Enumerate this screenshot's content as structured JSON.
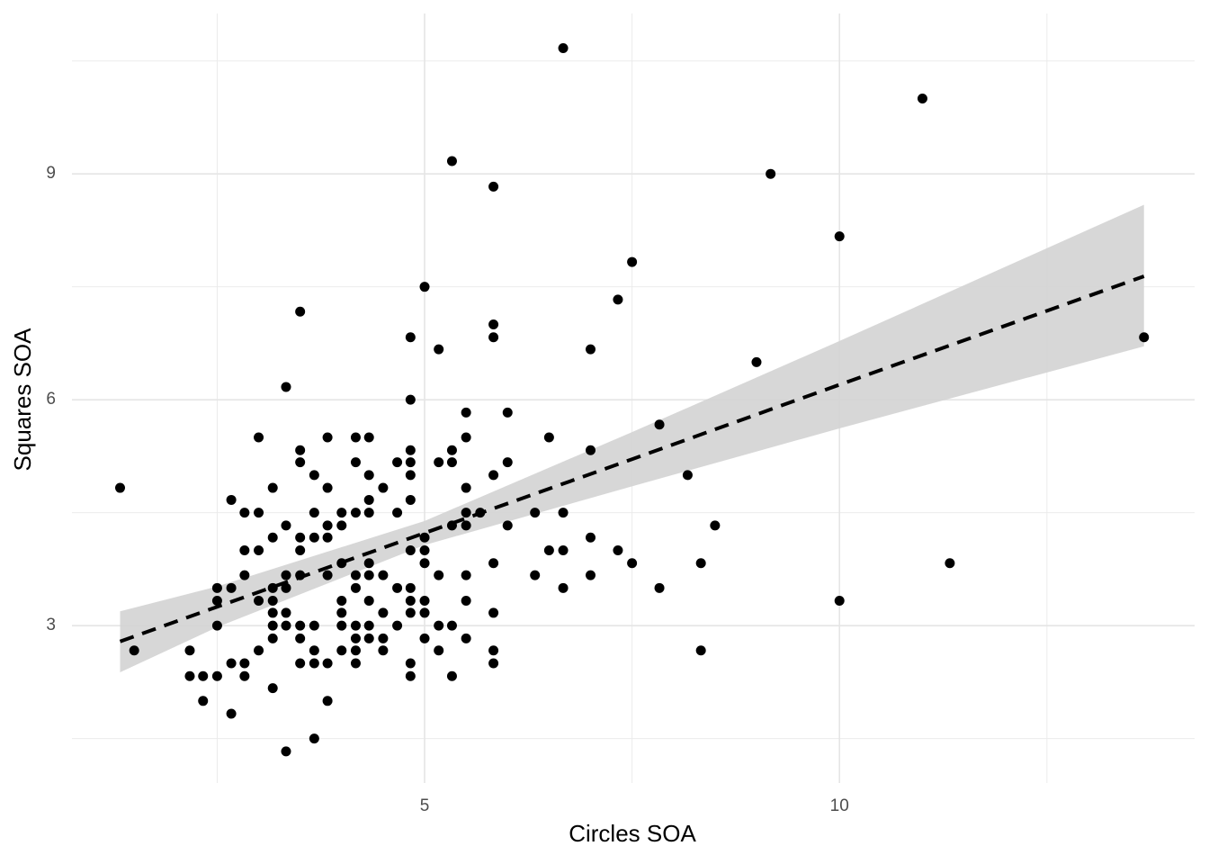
{
  "chart_data": {
    "type": "scatter",
    "x_label": "Circles SOA",
    "y_label": "Squares SOA",
    "x": [
      1.33,
      1.5,
      2.17,
      2.17,
      2.33,
      2.33,
      2.5,
      2.5,
      2.5,
      2.5,
      2.67,
      2.67,
      2.67,
      2.67,
      2.83,
      2.83,
      2.83,
      2.83,
      2.83,
      3.0,
      3.0,
      3.0,
      3.0,
      3.0,
      3.17,
      3.17,
      3.17,
      3.17,
      3.17,
      3.17,
      3.17,
      3.17,
      3.33,
      3.33,
      3.33,
      3.33,
      3.33,
      3.33,
      3.33,
      3.5,
      3.5,
      3.5,
      3.5,
      3.5,
      3.5,
      3.5,
      3.5,
      3.5,
      3.67,
      3.67,
      3.67,
      3.67,
      3.67,
      3.67,
      3.67,
      3.83,
      3.83,
      3.83,
      3.83,
      3.83,
      3.83,
      3.83,
      4.0,
      4.0,
      4.0,
      4.0,
      4.0,
      4.0,
      4.0,
      4.17,
      4.17,
      4.17,
      4.17,
      4.17,
      4.17,
      4.17,
      4.17,
      4.17,
      4.33,
      4.33,
      4.33,
      4.33,
      4.33,
      4.33,
      4.33,
      4.33,
      4.33,
      4.5,
      4.5,
      4.5,
      4.5,
      4.5,
      4.67,
      4.67,
      4.67,
      4.67,
      4.83,
      4.83,
      4.83,
      4.83,
      4.83,
      4.83,
      4.83,
      4.83,
      4.83,
      4.83,
      4.83,
      4.83,
      5.0,
      5.0,
      5.0,
      5.0,
      5.0,
      5.0,
      5.0,
      5.17,
      5.17,
      5.17,
      5.17,
      5.17,
      5.33,
      5.33,
      5.33,
      5.33,
      5.33,
      5.33,
      5.5,
      5.5,
      5.5,
      5.5,
      5.5,
      5.5,
      5.5,
      5.5,
      5.67,
      5.83,
      5.83,
      5.83,
      5.83,
      5.83,
      5.83,
      5.83,
      5.83,
      6.0,
      6.0,
      6.0,
      6.33,
      6.33,
      6.5,
      6.5,
      6.67,
      6.67,
      6.67,
      6.67,
      7.0,
      7.0,
      7.0,
      7.0,
      7.33,
      7.33,
      7.5,
      7.5,
      7.83,
      7.83,
      8.17,
      8.33,
      8.33,
      8.5,
      9.0,
      9.17,
      10.0,
      10.0,
      11.0,
      11.33,
      13.67
    ],
    "values": [
      4.83,
      2.67,
      2.67,
      2.33,
      2.33,
      2.0,
      3.5,
      3.33,
      3.0,
      2.33,
      4.67,
      3.5,
      2.5,
      1.83,
      4.5,
      4.0,
      3.67,
      2.5,
      2.33,
      5.5,
      4.5,
      4.0,
      3.33,
      2.67,
      4.83,
      4.17,
      3.5,
      3.33,
      3.17,
      3.0,
      2.83,
      2.17,
      6.17,
      4.33,
      3.67,
      3.5,
      3.17,
      3.0,
      1.33,
      7.17,
      5.33,
      5.17,
      4.17,
      4.0,
      3.67,
      3.0,
      2.83,
      2.5,
      5.0,
      4.5,
      4.17,
      3.0,
      2.67,
      2.5,
      1.5,
      5.5,
      4.83,
      4.33,
      4.17,
      3.67,
      2.5,
      2.0,
      4.5,
      4.33,
      3.83,
      3.33,
      3.17,
      3.0,
      2.67,
      5.5,
      5.17,
      4.5,
      3.67,
      3.5,
      3.0,
      2.83,
      2.67,
      2.5,
      5.5,
      5.0,
      4.67,
      4.5,
      3.83,
      3.67,
      3.33,
      3.0,
      2.83,
      4.83,
      3.67,
      3.17,
      2.83,
      2.67,
      5.17,
      4.5,
      3.5,
      3.0,
      6.83,
      6.0,
      5.33,
      5.17,
      5.0,
      4.67,
      4.0,
      3.5,
      3.33,
      3.17,
      2.5,
      2.33,
      7.5,
      4.17,
      4.0,
      3.83,
      3.33,
      3.17,
      2.83,
      6.67,
      5.17,
      3.67,
      3.0,
      2.67,
      9.17,
      5.33,
      5.17,
      4.33,
      3.0,
      2.33,
      5.83,
      5.5,
      4.83,
      4.5,
      4.33,
      3.67,
      3.33,
      2.83,
      4.5,
      8.83,
      7.0,
      6.83,
      5.0,
      3.83,
      3.17,
      2.67,
      2.5,
      5.83,
      5.17,
      4.33,
      4.5,
      3.67,
      5.5,
      4.0,
      10.67,
      4.5,
      4.0,
      3.5,
      6.67,
      5.33,
      4.17,
      3.67,
      7.33,
      4.0,
      7.83,
      3.83,
      5.67,
      3.5,
      5.0,
      3.83,
      2.67,
      4.33,
      6.5,
      9.0,
      8.17,
      3.33,
      10.0,
      3.83,
      6.83
    ],
    "color": "#000000",
    "trend": {
      "x": [
        1.33,
        2.5,
        5,
        7.5,
        10,
        13.67
      ],
      "y": [
        2.79,
        3.25,
        4.23,
        5.21,
        6.2,
        7.64
      ],
      "lower": [
        2.38,
        2.98,
        4.07,
        4.85,
        5.62,
        6.71
      ],
      "upper": [
        3.19,
        3.52,
        4.39,
        5.57,
        6.78,
        8.59
      ],
      "color": "#000000",
      "band_color": "#d3d3d3"
    },
    "xlim": [
      0.75,
      14.28
    ],
    "ylim": [
      0.91,
      11.13
    ],
    "xticks": [
      5,
      10
    ],
    "yticks": [
      3,
      6,
      9
    ],
    "x_minor_ticks": [
      2.5,
      7.5,
      12.5
    ],
    "y_minor_ticks": [
      1.5,
      4.5,
      7.5,
      10.5
    ],
    "grid": true
  }
}
